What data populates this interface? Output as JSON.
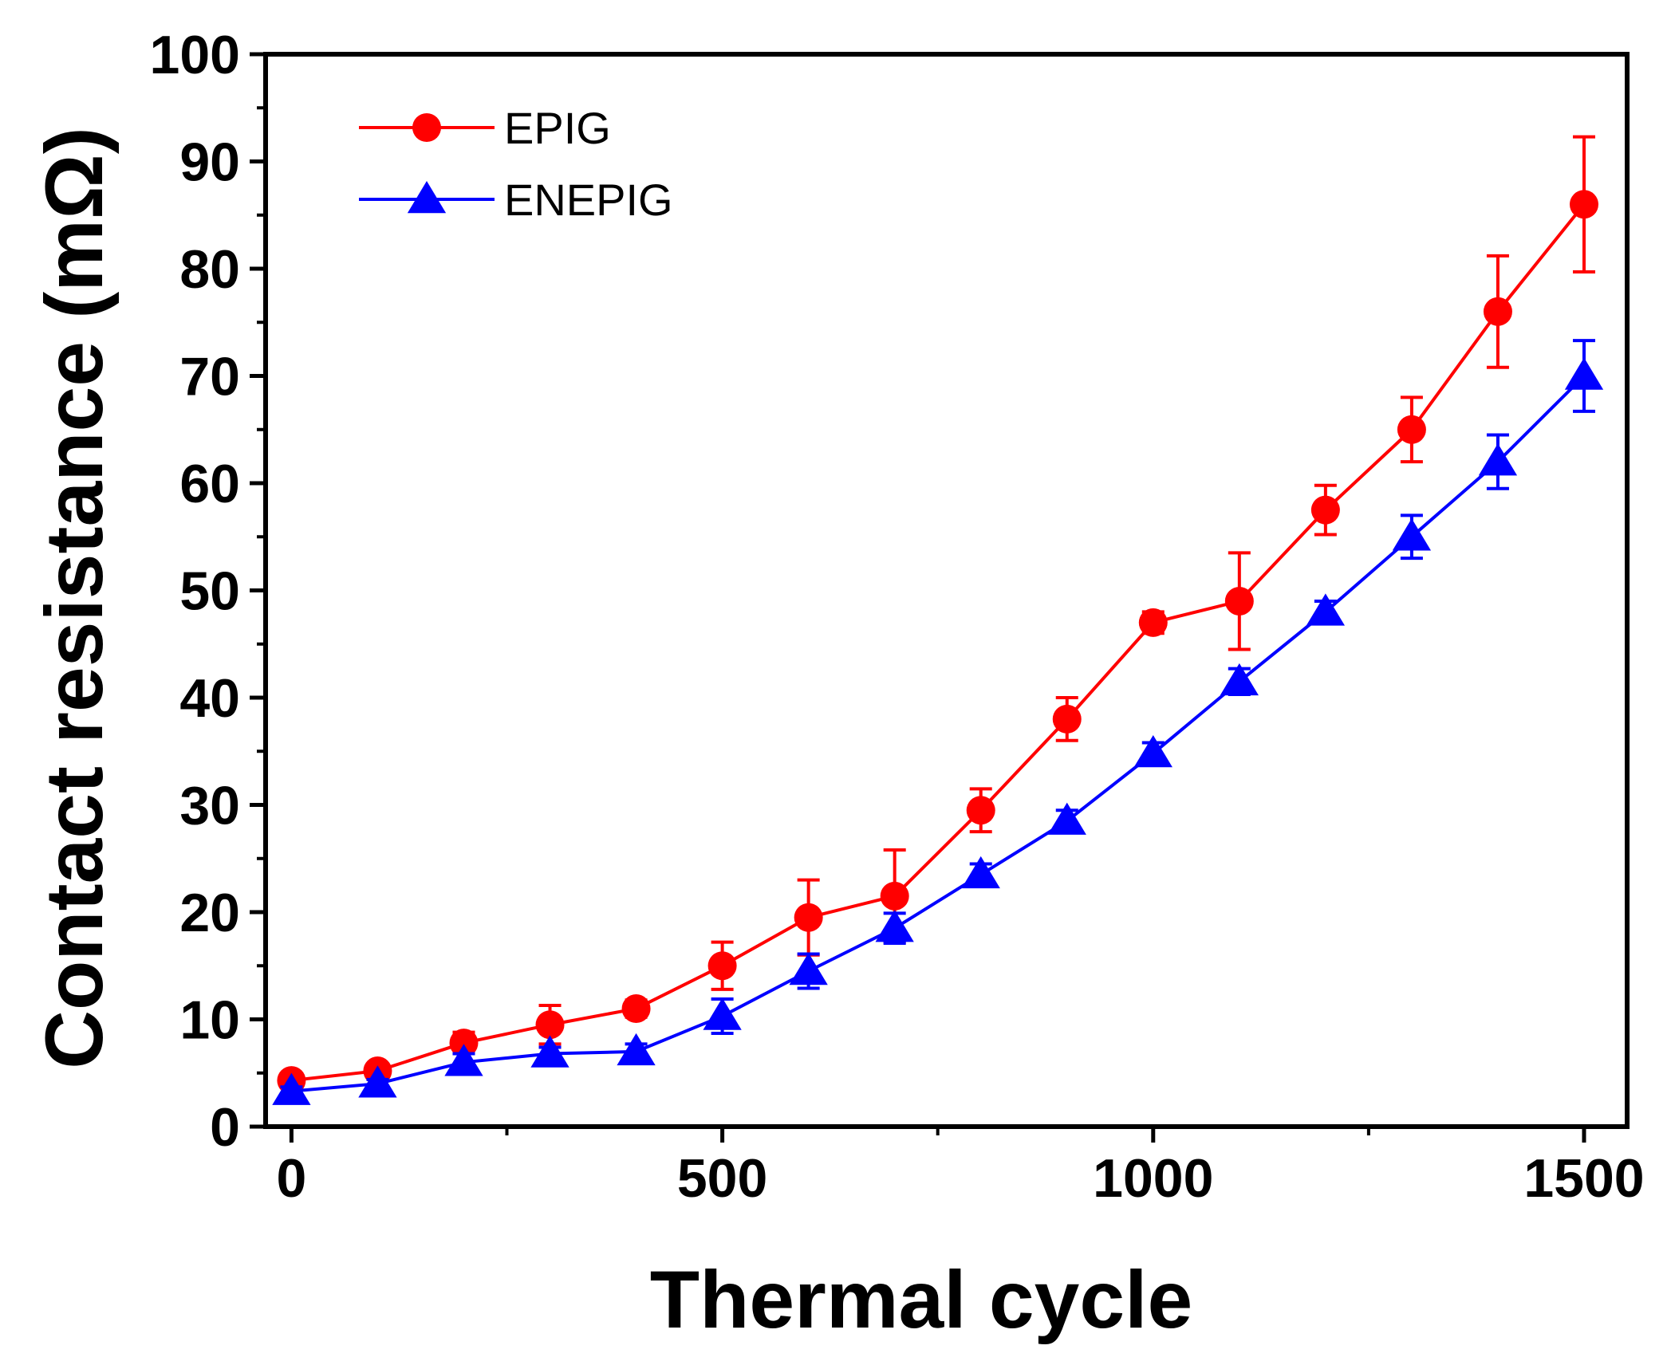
{
  "chart_data": {
    "type": "line",
    "title": "",
    "xlabel": "Thermal cycle",
    "ylabel": "Contact resistance (mΩ)",
    "xlim": [
      -30,
      1550
    ],
    "ylim": [
      0,
      100
    ],
    "xticks": [
      0,
      500,
      1000,
      1500
    ],
    "yticks": [
      0,
      10,
      20,
      30,
      40,
      50,
      60,
      70,
      80,
      90,
      100
    ],
    "legend_position": "top-left",
    "grid": false,
    "series": [
      {
        "name": "EPIG",
        "color": "#ff0000",
        "marker": "circle",
        "x": [
          0,
          100,
          200,
          300,
          400,
          500,
          600,
          700,
          800,
          900,
          1000,
          1100,
          1200,
          1300,
          1400,
          1500
        ],
        "y": [
          4.3,
          5.2,
          7.8,
          9.5,
          11.0,
          15.0,
          19.5,
          21.5,
          29.5,
          38.0,
          47.0,
          49.0,
          57.5,
          65.0,
          76.0,
          86.0
        ],
        "err": [
          0.5,
          0.6,
          1.0,
          1.8,
          0.8,
          2.2,
          3.5,
          4.3,
          2.0,
          2.0,
          1.0,
          4.5,
          2.3,
          3.0,
          5.2,
          6.3
        ]
      },
      {
        "name": "ENEPIG",
        "color": "#0000ff",
        "marker": "triangle",
        "x": [
          0,
          100,
          200,
          300,
          400,
          500,
          600,
          700,
          800,
          900,
          1000,
          1100,
          1200,
          1300,
          1400,
          1500
        ],
        "y": [
          3.3,
          4.0,
          6.0,
          6.8,
          7.0,
          10.3,
          14.5,
          18.5,
          23.5,
          28.5,
          34.8,
          41.5,
          48.0,
          55.0,
          62.0,
          70.0
        ],
        "err": [
          0.4,
          0.4,
          0.8,
          0.6,
          0.7,
          1.6,
          1.6,
          1.4,
          1.0,
          1.0,
          1.0,
          1.2,
          1.0,
          2.0,
          2.5,
          3.3
        ]
      }
    ]
  }
}
